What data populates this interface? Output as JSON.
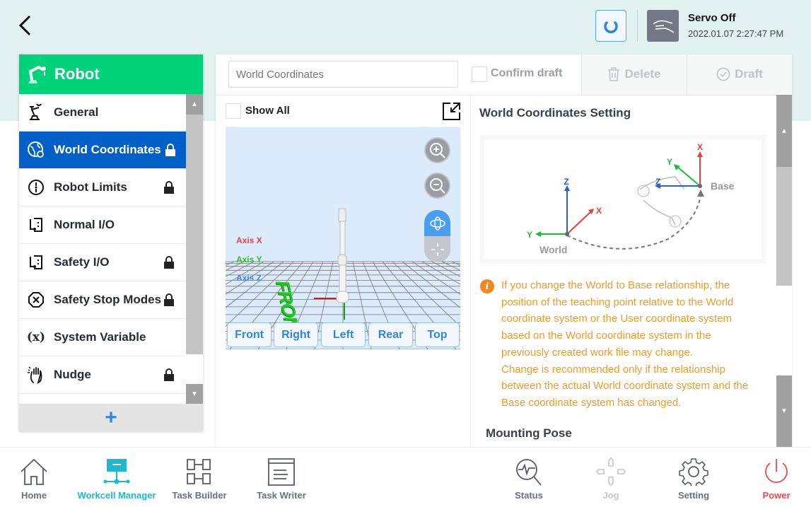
{
  "header": {
    "servo_status": "Servo Off",
    "datetime": "2022.01.07 2:27:47 PM"
  },
  "sidebar": {
    "title": "Robot",
    "items": [
      {
        "label": "General",
        "locked": false
      },
      {
        "label": "World Coordinates",
        "locked": true,
        "selected": true
      },
      {
        "label": "Robot Limits",
        "locked": true
      },
      {
        "label": "Normal I/O",
        "locked": false
      },
      {
        "label": "Safety I/O",
        "locked": true
      },
      {
        "label": "Safety Stop Modes",
        "locked": true
      },
      {
        "label": "System Variable",
        "locked": false
      },
      {
        "label": "Nudge",
        "locked": true
      }
    ],
    "add_label": "+"
  },
  "toolbar": {
    "name_placeholder": "World Coordinates",
    "confirm_draft": "Confirm draft",
    "delete": "Delete",
    "draft": "Draft"
  },
  "viewer": {
    "show_all": "Show All",
    "axis_x": "Axis X",
    "axis_y": "Axis Y",
    "axis_z": "Axis Z",
    "front_text": "FRONT",
    "views": [
      "Front",
      "Right",
      "Left",
      "Rear",
      "Top"
    ]
  },
  "settings": {
    "title": "World Coordinates Setting",
    "diagram": {
      "world": "World",
      "base": "Base",
      "x": "X",
      "y": "Y",
      "z": "Z"
    },
    "info_lines": [
      "If you change the World to Base relationship, the",
      "position of the teaching point relative to the World",
      "coordinate system or the User coordinate system",
      "based on the World coordinate system in the",
      "previously created work file may change.",
      "Change is recommended only if the relationship",
      "between the actual World coordinate system and the",
      "Base coordinate system has changed."
    ],
    "mounting_pose": "Mounting Pose"
  },
  "bottom_nav": [
    {
      "label": "Home"
    },
    {
      "label": "Workcell Manager",
      "active": true
    },
    {
      "label": "Task Builder"
    },
    {
      "label": "Task Writer"
    },
    {
      "label": "Status"
    },
    {
      "label": "Jog",
      "disabled": true
    },
    {
      "label": "Setting"
    },
    {
      "label": "Power"
    }
  ],
  "colors": {
    "accent_green": "#00d27a",
    "selected_blue": "#0060c8",
    "active_nav": "#1fb8d0",
    "warning": "#f39a2b",
    "power": "#f04a4a"
  }
}
